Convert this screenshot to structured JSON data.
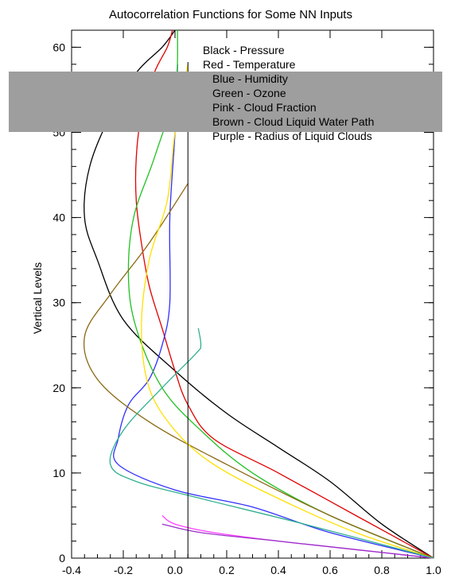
{
  "chart_data": {
    "type": "line",
    "title": "Autocorrelation Functions for Some NN Inputs",
    "xlabel": "",
    "ylabel": "Vertical Levels",
    "xlim": [
      -0.4,
      1.0
    ],
    "ylim": [
      0,
      62
    ],
    "x_ticks": [
      -0.4,
      -0.2,
      0.0,
      0.2,
      0.4,
      0.6,
      0.8,
      1.0
    ],
    "x_tick_labels": [
      "-0.4",
      "-0.2",
      "0.0",
      "0.2",
      "0.4",
      "0.6",
      "0.8",
      "1.0"
    ],
    "y_ticks": [
      0,
      10,
      20,
      30,
      40,
      50,
      60
    ],
    "y_tick_labels": [
      "0",
      "10",
      "20",
      "30",
      "40",
      "50",
      "60"
    ],
    "grid": false,
    "legend_placement": "top-right",
    "legend": [
      {
        "label": "Black - Pressure",
        "color": "#000000"
      },
      {
        "label": "Red - Temperature",
        "color": "#e00000"
      },
      {
        "label": "Blue - Humidity",
        "color": "#3030ff"
      },
      {
        "label": "Green - Ozone",
        "color": "#20c020"
      },
      {
        "label": "Pink - Cloud Fraction",
        "color": "#ff40ff"
      },
      {
        "label": "Brown - Cloud Liquid Water Path",
        "color": "#8b6914"
      },
      {
        "label": "Purple - Radius of Liquid Clouds",
        "color": "#9a30c8"
      }
    ],
    "series": [
      {
        "name": "Black - Pressure",
        "color": "#000000",
        "x": [
          1.0,
          0.8,
          0.6,
          0.4,
          0.2,
          0.0,
          -0.2,
          -0.3,
          -0.35,
          -0.33,
          -0.25,
          -0.15,
          -0.05,
          0.0
        ],
        "y": [
          0,
          4,
          9,
          13,
          17,
          22,
          28,
          35,
          40,
          46,
          52,
          57,
          60,
          62
        ]
      },
      {
        "name": "Red - Temperature",
        "color": "#e00000",
        "x": [
          1.0,
          0.7,
          0.4,
          0.15,
          0.05,
          0.0,
          -0.05,
          -0.1,
          -0.13,
          -0.15,
          -0.15,
          -0.13,
          -0.08,
          -0.03,
          -0.01
        ],
        "y": [
          0,
          5,
          10,
          14,
          18,
          22,
          27,
          32,
          37,
          42,
          47,
          52,
          57,
          60,
          62
        ]
      },
      {
        "name": "Blue - Humidity",
        "color": "#3030ff",
        "x": [
          1.0,
          0.6,
          0.3,
          0.0,
          -0.22,
          -0.22,
          -0.18,
          -0.1,
          -0.05,
          -0.02,
          -0.02,
          0.0,
          0.01
        ],
        "y": [
          0,
          3,
          6,
          8,
          11,
          14,
          18,
          21,
          25,
          30,
          40,
          50,
          58
        ]
      },
      {
        "name": "Green - Ozone",
        "color": "#20c020",
        "x": [
          1.0,
          0.6,
          0.3,
          0.1,
          -0.05,
          -0.15,
          -0.18,
          -0.16,
          -0.08,
          0.0,
          0.01
        ],
        "y": [
          0,
          5,
          10,
          15,
          20,
          27,
          33,
          40,
          47,
          55,
          62
        ]
      },
      {
        "name": "Pink - Cloud Fraction",
        "color": "#ff40ff",
        "x": [
          1.0,
          0.7,
          0.4,
          0.15,
          0.0,
          -0.05
        ],
        "y": [
          0,
          1,
          2,
          3,
          4,
          5
        ]
      },
      {
        "name": "Brown - Cloud Liquid Water Path",
        "color": "#8b6914",
        "x": [
          1.0,
          0.6,
          0.2,
          -0.1,
          -0.3,
          -0.35,
          -0.25,
          -0.1,
          0.05
        ],
        "y": [
          0,
          5,
          11,
          16,
          21,
          26,
          31,
          37,
          44
        ]
      },
      {
        "name": "Purple - Radius of Liquid Clouds",
        "color": "#9a30c8",
        "x": [
          1.0,
          0.7,
          0.4,
          0.1,
          -0.05
        ],
        "y": [
          0,
          1,
          2,
          3,
          4
        ]
      },
      {
        "name": "",
        "color": "#ffe000",
        "x": [
          1.0,
          0.7,
          0.4,
          0.15,
          0.0,
          -0.1,
          -0.13,
          -0.1,
          -0.03,
          0.0,
          0.05
        ],
        "y": [
          0,
          3,
          7,
          11,
          15,
          20,
          27,
          35,
          42,
          50,
          58
        ]
      },
      {
        "name": "",
        "color": "#30b090",
        "x": [
          1.0,
          0.5,
          0.1,
          -0.15,
          -0.25,
          -0.2,
          -0.05,
          0.08,
          0.1,
          0.09
        ],
        "y": [
          0,
          4,
          7,
          9,
          11,
          15,
          20,
          24,
          25,
          27
        ]
      }
    ]
  }
}
